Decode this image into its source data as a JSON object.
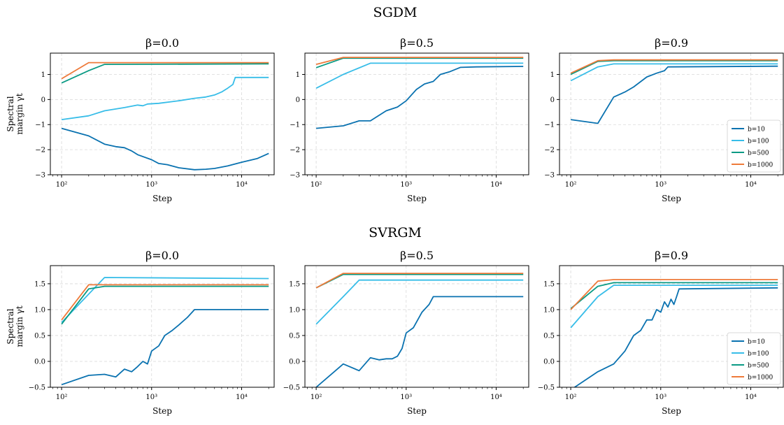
{
  "figure": {
    "groups": [
      {
        "title": "SGDM"
      },
      {
        "title": "SVRGM"
      }
    ]
  },
  "colors": {
    "b=10": "#0a72b0",
    "b=100": "#37bde8",
    "b=500": "#0a9a84",
    "b=1000": "#ee7a3a"
  },
  "chart_data": [
    {
      "type": "line",
      "group": "SGDM",
      "title": "β=0.0",
      "xlabel": "Step",
      "ylabel": "Spectral margin γt",
      "xscale": "log",
      "xlim": [
        75,
        23000
      ],
      "ylim": [
        -3,
        1.85
      ],
      "xticks": [
        {
          "v": 100,
          "label": "10²"
        },
        {
          "v": 1000,
          "label": "10³"
        },
        {
          "v": 10000,
          "label": "10⁴"
        }
      ],
      "yticks": [
        {
          "v": -3,
          "label": "−3"
        },
        {
          "v": -2,
          "label": "−2"
        },
        {
          "v": -1,
          "label": "−1"
        },
        {
          "v": 0,
          "label": "0"
        },
        {
          "v": 1,
          "label": "1"
        }
      ],
      "legend": false,
      "series": [
        {
          "name": "b=10",
          "points": [
            [
              100,
              -1.15
            ],
            [
              200,
              -1.45
            ],
            [
              300,
              -1.78
            ],
            [
              400,
              -1.88
            ],
            [
              500,
              -1.92
            ],
            [
              600,
              -2.05
            ],
            [
              700,
              -2.2
            ],
            [
              1000,
              -2.4
            ],
            [
              1200,
              -2.55
            ],
            [
              1500,
              -2.6
            ],
            [
              2000,
              -2.72
            ],
            [
              3000,
              -2.8
            ],
            [
              4000,
              -2.78
            ],
            [
              5000,
              -2.75
            ],
            [
              7000,
              -2.65
            ],
            [
              10000,
              -2.5
            ],
            [
              15000,
              -2.35
            ],
            [
              20000,
              -2.15
            ]
          ]
        },
        {
          "name": "b=100",
          "points": [
            [
              100,
              -0.8
            ],
            [
              200,
              -0.65
            ],
            [
              300,
              -0.45
            ],
            [
              500,
              -0.32
            ],
            [
              700,
              -0.22
            ],
            [
              800,
              -0.25
            ],
            [
              900,
              -0.18
            ],
            [
              1200,
              -0.15
            ],
            [
              2000,
              -0.05
            ],
            [
              3000,
              0.05
            ],
            [
              4000,
              0.1
            ],
            [
              5000,
              0.18
            ],
            [
              6000,
              0.3
            ],
            [
              7000,
              0.45
            ],
            [
              8000,
              0.6
            ],
            [
              8500,
              0.88
            ],
            [
              20000,
              0.88
            ]
          ]
        },
        {
          "name": "b=500",
          "points": [
            [
              100,
              0.66
            ],
            [
              200,
              1.15
            ],
            [
              300,
              1.4
            ],
            [
              20000,
              1.42
            ]
          ]
        },
        {
          "name": "b=1000",
          "points": [
            [
              100,
              0.83
            ],
            [
              200,
              1.47
            ],
            [
              20000,
              1.47
            ]
          ]
        }
      ]
    },
    {
      "type": "line",
      "group": "SGDM",
      "title": "β=0.5",
      "xlabel": "Step",
      "ylabel": "",
      "xscale": "log",
      "xlim": [
        75,
        23000
      ],
      "ylim": [
        -3,
        1.85
      ],
      "xticks": [
        {
          "v": 100,
          "label": "10²"
        },
        {
          "v": 1000,
          "label": "10³"
        },
        {
          "v": 10000,
          "label": "10⁴"
        }
      ],
      "yticks": [
        {
          "v": -3,
          "label": "−3"
        },
        {
          "v": -2,
          "label": "−2"
        },
        {
          "v": -1,
          "label": "−1"
        },
        {
          "v": 0,
          "label": "0"
        },
        {
          "v": 1,
          "label": "1"
        }
      ],
      "legend": false,
      "series": [
        {
          "name": "b=10",
          "points": [
            [
              100,
              -1.15
            ],
            [
              200,
              -1.05
            ],
            [
              300,
              -0.85
            ],
            [
              400,
              -0.85
            ],
            [
              600,
              -0.45
            ],
            [
              800,
              -0.3
            ],
            [
              1000,
              -0.05
            ],
            [
              1300,
              0.4
            ],
            [
              1600,
              0.62
            ],
            [
              2000,
              0.72
            ],
            [
              2400,
              1.0
            ],
            [
              3000,
              1.1
            ],
            [
              4000,
              1.28
            ],
            [
              6000,
              1.3
            ],
            [
              20000,
              1.32
            ]
          ]
        },
        {
          "name": "b=100",
          "points": [
            [
              100,
              0.45
            ],
            [
              200,
              1.0
            ],
            [
              400,
              1.45
            ],
            [
              20000,
              1.45
            ]
          ]
        },
        {
          "name": "b=500",
          "points": [
            [
              100,
              1.27
            ],
            [
              200,
              1.65
            ],
            [
              20000,
              1.65
            ]
          ]
        },
        {
          "name": "b=1000",
          "points": [
            [
              100,
              1.4
            ],
            [
              200,
              1.68
            ],
            [
              20000,
              1.68
            ]
          ]
        }
      ]
    },
    {
      "type": "line",
      "group": "SGDM",
      "title": "β=0.9",
      "xlabel": "Step",
      "ylabel": "",
      "xscale": "log",
      "xlim": [
        75,
        23000
      ],
      "ylim": [
        -3,
        1.85
      ],
      "xticks": [
        {
          "v": 100,
          "label": "10²"
        },
        {
          "v": 1000,
          "label": "10³"
        },
        {
          "v": 10000,
          "label": "10⁴"
        }
      ],
      "yticks": [
        {
          "v": -3,
          "label": "−3"
        },
        {
          "v": -2,
          "label": "−2"
        },
        {
          "v": -1,
          "label": "−1"
        },
        {
          "v": 0,
          "label": "0"
        },
        {
          "v": 1,
          "label": "1"
        }
      ],
      "legend": true,
      "legend_position": "bottom-right",
      "series": [
        {
          "name": "b=10",
          "points": [
            [
              100,
              -0.8
            ],
            [
              200,
              -0.95
            ],
            [
              300,
              0.1
            ],
            [
              400,
              0.3
            ],
            [
              500,
              0.5
            ],
            [
              700,
              0.9
            ],
            [
              900,
              1.05
            ],
            [
              1100,
              1.15
            ],
            [
              1200,
              1.3
            ],
            [
              20000,
              1.33
            ]
          ]
        },
        {
          "name": "b=100",
          "points": [
            [
              100,
              0.75
            ],
            [
              200,
              1.3
            ],
            [
              300,
              1.42
            ],
            [
              20000,
              1.42
            ]
          ]
        },
        {
          "name": "b=500",
          "points": [
            [
              100,
              1.0
            ],
            [
              200,
              1.52
            ],
            [
              300,
              1.55
            ],
            [
              20000,
              1.55
            ]
          ]
        },
        {
          "name": "b=1000",
          "points": [
            [
              100,
              1.05
            ],
            [
              200,
              1.55
            ],
            [
              300,
              1.58
            ],
            [
              20000,
              1.58
            ]
          ]
        }
      ]
    },
    {
      "type": "line",
      "group": "SVRGM",
      "title": "β=0.0",
      "xlabel": "Step",
      "ylabel": "Spectral margin γt",
      "xscale": "log",
      "xlim": [
        75,
        23000
      ],
      "ylim": [
        -0.5,
        1.85
      ],
      "xticks": [
        {
          "v": 100,
          "label": "10²"
        },
        {
          "v": 1000,
          "label": "10³"
        },
        {
          "v": 10000,
          "label": "10⁴"
        }
      ],
      "yticks": [
        {
          "v": -0.5,
          "label": "−0.5"
        },
        {
          "v": 0,
          "label": "0.0"
        },
        {
          "v": 0.5,
          "label": "0.5"
        },
        {
          "v": 1,
          "label": "1.0"
        },
        {
          "v": 1.5,
          "label": "1.5"
        }
      ],
      "legend": false,
      "series": [
        {
          "name": "b=10",
          "points": [
            [
              100,
              -0.45
            ],
            [
              200,
              -0.27
            ],
            [
              300,
              -0.25
            ],
            [
              400,
              -0.3
            ],
            [
              500,
              -0.15
            ],
            [
              600,
              -0.2
            ],
            [
              700,
              -0.1
            ],
            [
              800,
              0.0
            ],
            [
              900,
              -0.05
            ],
            [
              1000,
              0.2
            ],
            [
              1200,
              0.3
            ],
            [
              1400,
              0.5
            ],
            [
              1700,
              0.6
            ],
            [
              2000,
              0.7
            ],
            [
              2500,
              0.85
            ],
            [
              3000,
              1.0
            ],
            [
              20000,
              1.0
            ]
          ]
        },
        {
          "name": "b=100",
          "points": [
            [
              100,
              0.75
            ],
            [
              200,
              1.3
            ],
            [
              300,
              1.62
            ],
            [
              20000,
              1.6
            ]
          ]
        },
        {
          "name": "b=500",
          "points": [
            [
              100,
              0.72
            ],
            [
              200,
              1.4
            ],
            [
              300,
              1.45
            ],
            [
              20000,
              1.45
            ]
          ]
        },
        {
          "name": "b=1000",
          "points": [
            [
              100,
              0.8
            ],
            [
              200,
              1.48
            ],
            [
              20000,
              1.48
            ]
          ]
        }
      ]
    },
    {
      "type": "line",
      "group": "SVRGM",
      "title": "β=0.5",
      "xlabel": "Step",
      "ylabel": "",
      "xscale": "log",
      "xlim": [
        75,
        23000
      ],
      "ylim": [
        -0.5,
        1.85
      ],
      "xticks": [
        {
          "v": 100,
          "label": "10²"
        },
        {
          "v": 1000,
          "label": "10³"
        },
        {
          "v": 10000,
          "label": "10⁴"
        }
      ],
      "yticks": [
        {
          "v": -0.5,
          "label": "−0.5"
        },
        {
          "v": 0,
          "label": "0.0"
        },
        {
          "v": 0.5,
          "label": "0.5"
        },
        {
          "v": 1,
          "label": "1.0"
        },
        {
          "v": 1.5,
          "label": "1.5"
        }
      ],
      "legend": false,
      "series": [
        {
          "name": "b=10",
          "points": [
            [
              100,
              -0.5
            ],
            [
              200,
              -0.05
            ],
            [
              300,
              -0.18
            ],
            [
              400,
              0.07
            ],
            [
              500,
              0.03
            ],
            [
              600,
              0.05
            ],
            [
              700,
              0.05
            ],
            [
              800,
              0.1
            ],
            [
              900,
              0.25
            ],
            [
              1000,
              0.55
            ],
            [
              1200,
              0.65
            ],
            [
              1500,
              0.95
            ],
            [
              1800,
              1.1
            ],
            [
              2000,
              1.25
            ],
            [
              20000,
              1.25
            ]
          ]
        },
        {
          "name": "b=100",
          "points": [
            [
              100,
              0.72
            ],
            [
              200,
              1.25
            ],
            [
              300,
              1.57
            ],
            [
              20000,
              1.57
            ]
          ]
        },
        {
          "name": "b=500",
          "points": [
            [
              100,
              1.42
            ],
            [
              200,
              1.68
            ],
            [
              20000,
              1.68
            ]
          ]
        },
        {
          "name": "b=1000",
          "points": [
            [
              100,
              1.42
            ],
            [
              200,
              1.7
            ],
            [
              20000,
              1.7
            ]
          ]
        }
      ]
    },
    {
      "type": "line",
      "group": "SVRGM",
      "title": "β=0.9",
      "xlabel": "Step",
      "ylabel": "",
      "xscale": "log",
      "xlim": [
        75,
        23000
      ],
      "ylim": [
        -0.5,
        1.85
      ],
      "xticks": [
        {
          "v": 100,
          "label": "10²"
        },
        {
          "v": 1000,
          "label": "10³"
        },
        {
          "v": 10000,
          "label": "10⁴"
        }
      ],
      "yticks": [
        {
          "v": -0.5,
          "label": "−0.5"
        },
        {
          "v": 0,
          "label": "0.0"
        },
        {
          "v": 0.5,
          "label": "0.5"
        },
        {
          "v": 1,
          "label": "1.0"
        },
        {
          "v": 1.5,
          "label": "1.5"
        }
      ],
      "legend": true,
      "legend_position": "bottom-right",
      "series": [
        {
          "name": "b=10",
          "points": [
            [
              100,
              -0.55
            ],
            [
              200,
              -0.2
            ],
            [
              300,
              -0.05
            ],
            [
              400,
              0.2
            ],
            [
              500,
              0.5
            ],
            [
              600,
              0.6
            ],
            [
              700,
              0.8
            ],
            [
              800,
              0.8
            ],
            [
              900,
              1.0
            ],
            [
              1000,
              0.95
            ],
            [
              1100,
              1.15
            ],
            [
              1200,
              1.05
            ],
            [
              1300,
              1.2
            ],
            [
              1400,
              1.1
            ],
            [
              1500,
              1.25
            ],
            [
              1600,
              1.4
            ],
            [
              20000,
              1.42
            ]
          ]
        },
        {
          "name": "b=100",
          "points": [
            [
              100,
              0.65
            ],
            [
              200,
              1.25
            ],
            [
              300,
              1.47
            ],
            [
              20000,
              1.47
            ]
          ]
        },
        {
          "name": "b=500",
          "points": [
            [
              100,
              1.02
            ],
            [
              200,
              1.45
            ],
            [
              300,
              1.52
            ],
            [
              20000,
              1.52
            ]
          ]
        },
        {
          "name": "b=1000",
          "points": [
            [
              100,
              1.0
            ],
            [
              200,
              1.55
            ],
            [
              300,
              1.58
            ],
            [
              20000,
              1.58
            ]
          ]
        }
      ]
    }
  ]
}
